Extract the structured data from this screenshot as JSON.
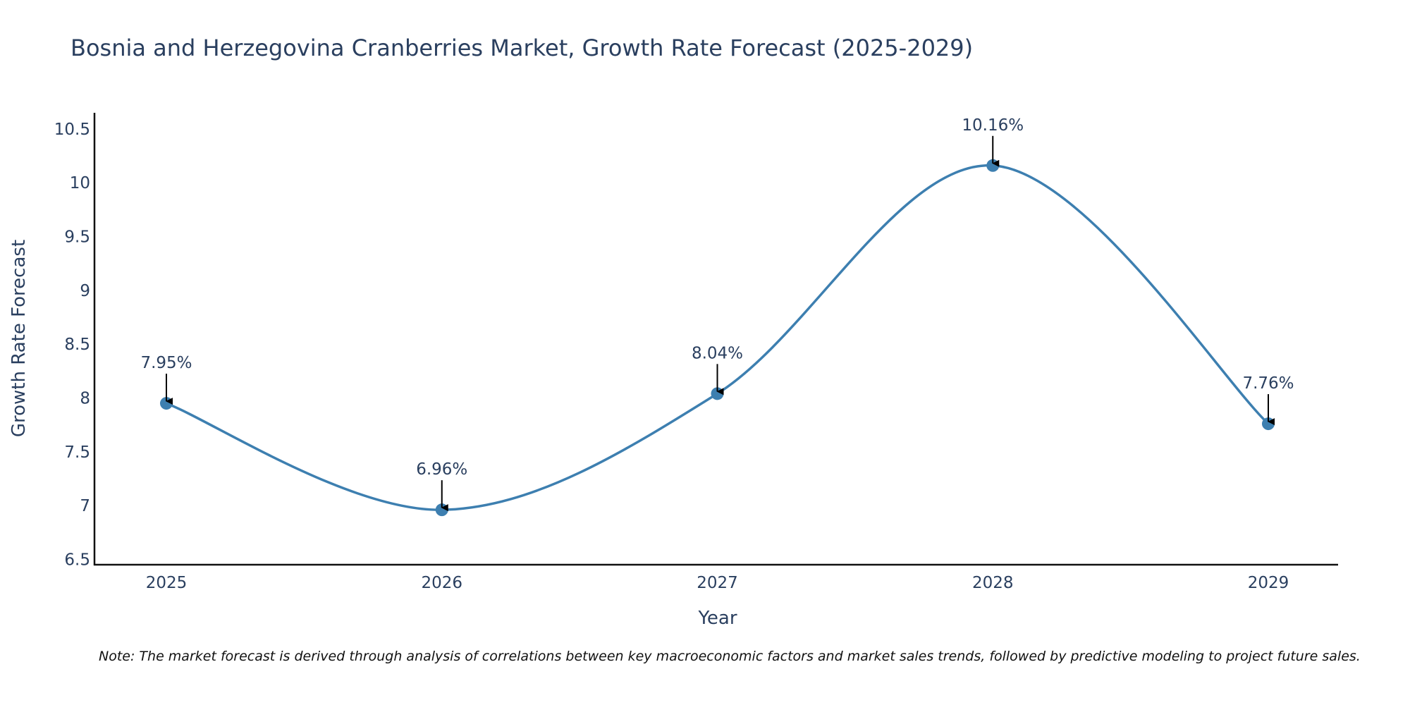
{
  "chart_data": {
    "type": "line",
    "title": "Bosnia and Herzegovina Cranberries Market, Growth Rate Forecast (2025-2029)",
    "xlabel": "Year",
    "ylabel": "Growth Rate Forecast",
    "categories": [
      "2025",
      "2026",
      "2027",
      "2028",
      "2029"
    ],
    "values": [
      7.95,
      6.96,
      8.04,
      10.16,
      7.76
    ],
    "data_labels": [
      "7.95%",
      "6.96%",
      "8.04%",
      "10.16%",
      "7.76%"
    ],
    "ylim": [
      6.45,
      10.65
    ],
    "yticks": [
      6.5,
      7,
      7.5,
      8,
      8.5,
      9,
      9.5,
      10,
      10.5
    ],
    "ytick_labels": [
      "6.5",
      "7",
      "7.5",
      "8",
      "8.5",
      "9",
      "9.5",
      "10",
      "10.5"
    ],
    "line_shape": "spline",
    "grid": false,
    "colors": {
      "line": "#3d7fb0",
      "marker": "#3d7fb0",
      "axis": "#111111",
      "text": "#2a3f5f",
      "arrow": "#000000"
    }
  },
  "note": "Note: The market forecast is derived through analysis of correlations between key macroeconomic factors and market sales trends, followed by predictive modeling to project future sales."
}
